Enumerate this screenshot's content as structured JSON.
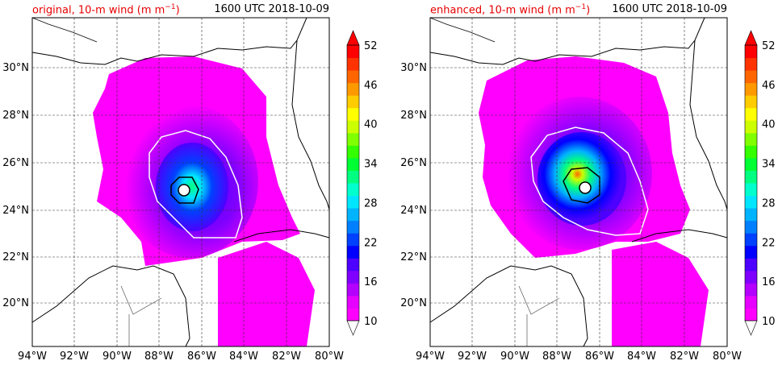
{
  "panels": [
    {
      "title_left": "original, 10-m wind (m m",
      "title_sup": "−1",
      "title_left_end": ")",
      "title_right": "1600 UTC 2018-10-09"
    },
    {
      "title_left": "enhanced, 10-m wind (m m",
      "title_sup": "−1",
      "title_left_end": ")",
      "title_right": "1600 UTC 2018-10-09"
    }
  ],
  "lon_ticks": [
    "94°W",
    "92°W",
    "90°W",
    "88°W",
    "86°W",
    "84°W",
    "82°W",
    "80°W"
  ],
  "lat_ticks": [
    "30°N",
    "28°N",
    "26°N",
    "24°N",
    "22°N",
    "20°N"
  ],
  "colorbar": {
    "labels": [
      "52",
      "46",
      "40",
      "34",
      "28",
      "22",
      "16",
      "10"
    ],
    "colors": [
      "#ff00ff",
      "#e600ff",
      "#b300ff",
      "#8000ff",
      "#4d00ff",
      "#0000ff",
      "#0040ff",
      "#0080ff",
      "#00b3ff",
      "#00e6ff",
      "#00ffcc",
      "#00ff80",
      "#00ff33",
      "#33ff00",
      "#80ff00",
      "#ccff00",
      "#ffff00",
      "#ffcc00",
      "#ff9900",
      "#ff6600",
      "#ff3300",
      "#ff0000"
    ],
    "over_color": "#ff0000",
    "under_color": "#ffffff"
  }
}
